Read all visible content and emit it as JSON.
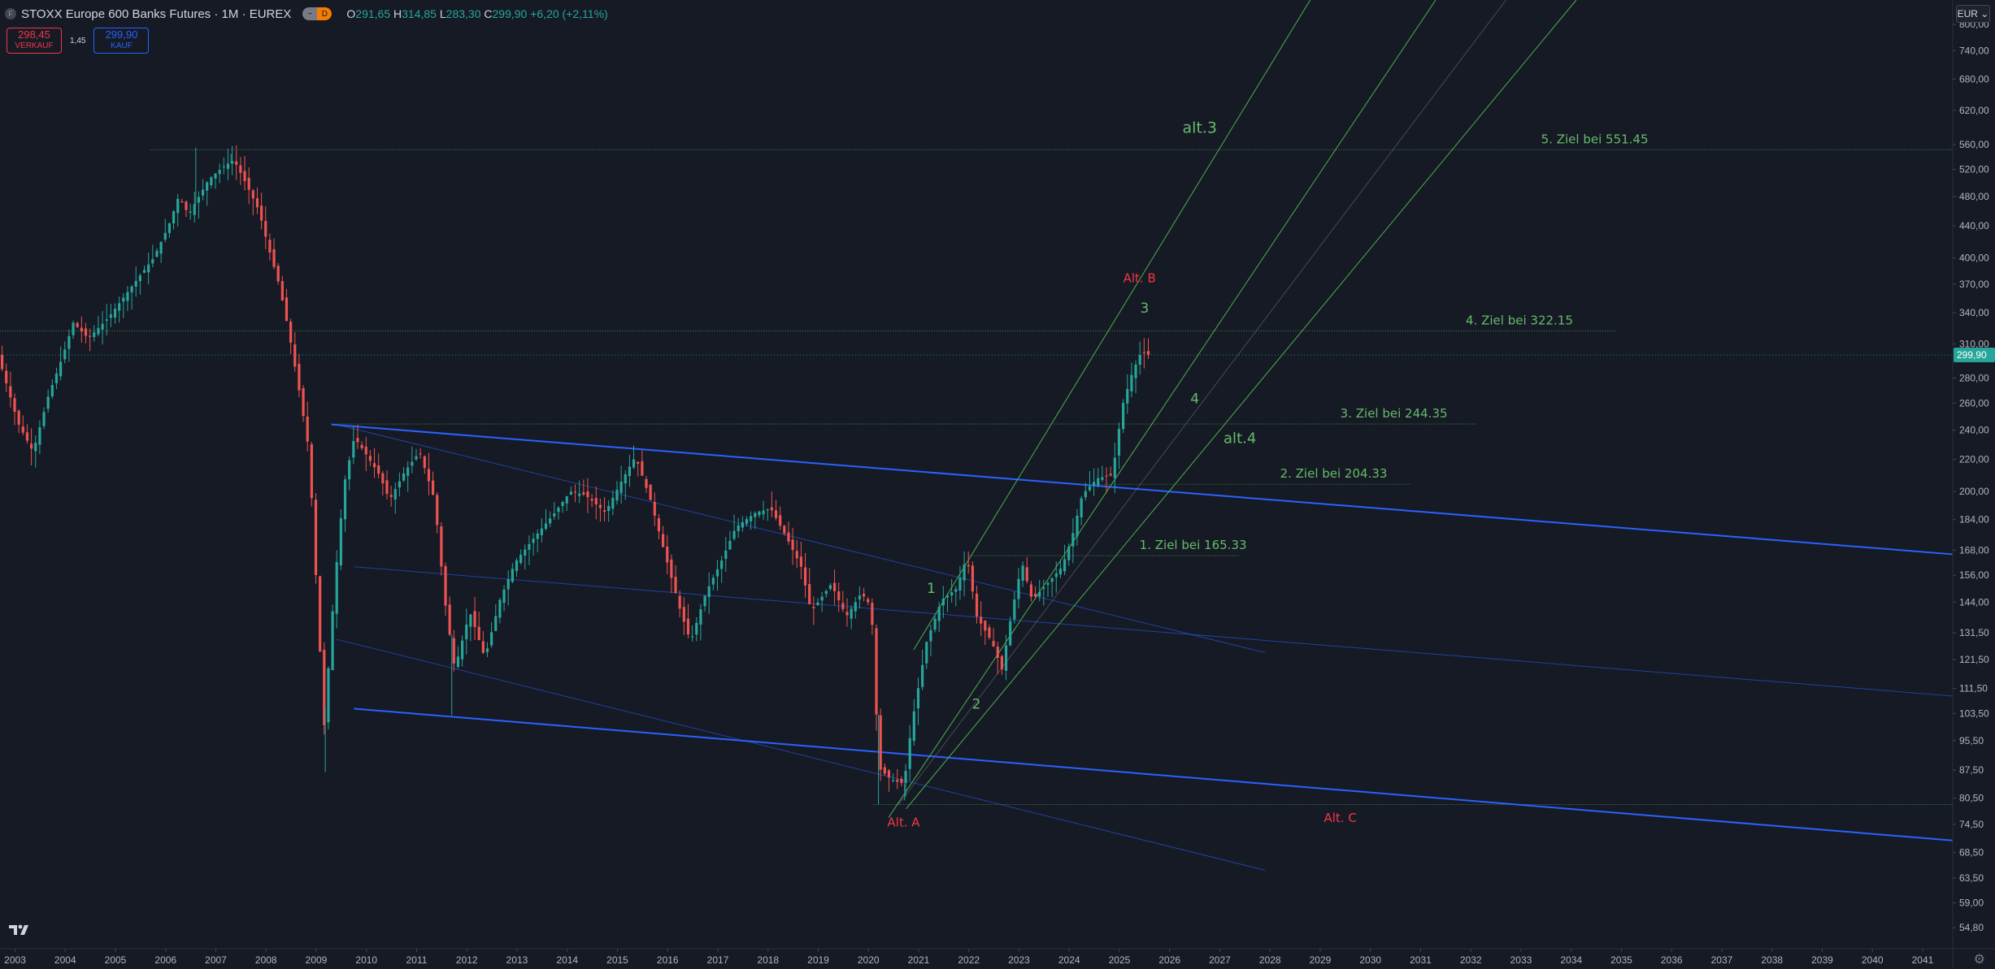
{
  "header": {
    "symbol_icon": "F",
    "title": "STOXX Europe 600 Banks Futures",
    "interval": "1M",
    "exchange": "EUREX",
    "separator": "·",
    "badge_left": "−",
    "badge_right": "D",
    "ohlc": {
      "o_label": "O",
      "o_value": "291,65",
      "h_label": "H",
      "h_value": "314,85",
      "l_label": "L",
      "l_value": "283,30",
      "c_label": "C",
      "c_value": "299,90",
      "change": "+6,20 (+2,11%)"
    }
  },
  "trade": {
    "sell_price": "298,45",
    "sell_label": "VERKAUF",
    "spread": "1,45",
    "buy_price": "299,90",
    "buy_label": "KAUF"
  },
  "currency_button": "EUR",
  "colors": {
    "background": "#161a25",
    "up": "#26a69a",
    "down": "#ef5350",
    "channel_blue": "#2962ff",
    "fib_green": "#4caf50",
    "wave_green": "#66bb6a",
    "alt_red": "#f23645"
  },
  "chart_data": {
    "type": "candlestick",
    "scale": "log",
    "x_range": [
      "2002-09",
      "2041-06"
    ],
    "y_range": [
      51.5,
      860
    ],
    "last_price": 299.9,
    "last_price_label": "299,90",
    "x_ticks": [
      "2003",
      "2004",
      "2005",
      "2006",
      "2007",
      "2008",
      "2009",
      "2010",
      "2011",
      "2012",
      "2013",
      "2014",
      "2015",
      "2016",
      "2017",
      "2018",
      "2019",
      "2020",
      "2021",
      "2022",
      "2023",
      "2024",
      "2025",
      "2026",
      "2027",
      "2028",
      "2029",
      "2030",
      "2031",
      "2032",
      "2033",
      "2034",
      "2035",
      "2036",
      "2037",
      "2038",
      "2039",
      "2040",
      "2041"
    ],
    "y_ticks": [
      {
        "v": 800,
        "label": "800,00"
      },
      {
        "v": 740,
        "label": "740,00"
      },
      {
        "v": 680,
        "label": "680,00"
      },
      {
        "v": 620,
        "label": "620,00"
      },
      {
        "v": 560,
        "label": "560,00"
      },
      {
        "v": 520,
        "label": "520,00"
      },
      {
        "v": 480,
        "label": "480,00"
      },
      {
        "v": 440,
        "label": "440,00"
      },
      {
        "v": 400,
        "label": "400,00"
      },
      {
        "v": 370,
        "label": "370,00"
      },
      {
        "v": 340,
        "label": "340,00"
      },
      {
        "v": 310,
        "label": "310,00"
      },
      {
        "v": 280,
        "label": "280,00"
      },
      {
        "v": 260,
        "label": "260,00"
      },
      {
        "v": 240,
        "label": "240,00"
      },
      {
        "v": 220,
        "label": "220,00"
      },
      {
        "v": 200,
        "label": "200,00"
      },
      {
        "v": 184,
        "label": "184,00"
      },
      {
        "v": 168,
        "label": "168,00"
      },
      {
        "v": 156,
        "label": "156,00"
      },
      {
        "v": 144,
        "label": "144,00"
      },
      {
        "v": 131.5,
        "label": "131,50"
      },
      {
        "v": 121.5,
        "label": "121,50"
      },
      {
        "v": 111.5,
        "label": "111,50"
      },
      {
        "v": 103.5,
        "label": "103,50"
      },
      {
        "v": 95.5,
        "label": "95,50"
      },
      {
        "v": 87.5,
        "label": "87,50"
      },
      {
        "v": 80.5,
        "label": "80,50"
      },
      {
        "v": 74.5,
        "label": "74,50"
      },
      {
        "v": 68.5,
        "label": "68,50"
      },
      {
        "v": 63.5,
        "label": "63,50"
      },
      {
        "v": 59,
        "label": "59,00"
      },
      {
        "v": 54.8,
        "label": "54,80"
      }
    ],
    "price_path": [
      [
        2002.7,
        300
      ],
      [
        2003.1,
        245
      ],
      [
        2003.4,
        225
      ],
      [
        2003.7,
        265
      ],
      [
        2004.0,
        300
      ],
      [
        2004.2,
        330
      ],
      [
        2004.5,
        315
      ],
      [
        2004.9,
        335
      ],
      [
        2005.4,
        370
      ],
      [
        2005.8,
        400
      ],
      [
        2006.1,
        440
      ],
      [
        2006.3,
        480
      ],
      [
        2006.5,
        455
      ],
      [
        2006.9,
        505
      ],
      [
        2007.2,
        525
      ],
      [
        2007.4,
        535
      ],
      [
        2007.6,
        505
      ],
      [
        2007.9,
        460
      ],
      [
        2008.1,
        410
      ],
      [
        2008.3,
        370
      ],
      [
        2008.5,
        320
      ],
      [
        2008.7,
        270
      ],
      [
        2008.9,
        225
      ],
      [
        2009.1,
        130
      ],
      [
        2009.2,
        100
      ],
      [
        2009.4,
        150
      ],
      [
        2009.6,
        205
      ],
      [
        2009.8,
        235
      ],
      [
        2010.0,
        225
      ],
      [
        2010.3,
        210
      ],
      [
        2010.5,
        195
      ],
      [
        2010.8,
        212
      ],
      [
        2011.1,
        225
      ],
      [
        2011.4,
        195
      ],
      [
        2011.6,
        145
      ],
      [
        2011.8,
        118
      ],
      [
        2012.1,
        140
      ],
      [
        2012.4,
        122
      ],
      [
        2012.7,
        145
      ],
      [
        2013.0,
        162
      ],
      [
        2013.4,
        175
      ],
      [
        2013.8,
        188
      ],
      [
        2014.1,
        200
      ],
      [
        2014.4,
        198
      ],
      [
        2014.8,
        188
      ],
      [
        2015.1,
        205
      ],
      [
        2015.4,
        222
      ],
      [
        2015.7,
        195
      ],
      [
        2016.0,
        165
      ],
      [
        2016.3,
        140
      ],
      [
        2016.5,
        128
      ],
      [
        2016.8,
        148
      ],
      [
        2017.1,
        162
      ],
      [
        2017.4,
        180
      ],
      [
        2017.8,
        188
      ],
      [
        2018.1,
        190
      ],
      [
        2018.4,
        175
      ],
      [
        2018.7,
        160
      ],
      [
        2018.9,
        140
      ],
      [
        2019.3,
        152
      ],
      [
        2019.6,
        138
      ],
      [
        2019.9,
        148
      ],
      [
        2020.1,
        142
      ],
      [
        2020.25,
        88
      ],
      [
        2020.5,
        85
      ],
      [
        2020.75,
        84
      ],
      [
        2020.9,
        100
      ],
      [
        2021.2,
        128
      ],
      [
        2021.5,
        145
      ],
      [
        2021.8,
        150
      ],
      [
        2022.0,
        165
      ],
      [
        2022.2,
        138
      ],
      [
        2022.5,
        128
      ],
      [
        2022.7,
        118
      ],
      [
        2022.9,
        140
      ],
      [
        2023.1,
        162
      ],
      [
        2023.3,
        145
      ],
      [
        2023.6,
        152
      ],
      [
        2023.9,
        160
      ],
      [
        2024.1,
        175
      ],
      [
        2024.3,
        198
      ],
      [
        2024.6,
        208
      ],
      [
        2024.9,
        210
      ],
      [
        2025.1,
        258
      ],
      [
        2025.3,
        285
      ],
      [
        2025.5,
        305
      ],
      [
        2025.55,
        299.9
      ]
    ],
    "lows": [
      [
        2009.18,
        87
      ],
      [
        2011.7,
        103
      ],
      [
        2020.2,
        79
      ],
      [
        2020.72,
        80
      ]
    ],
    "highs": [
      [
        2006.6,
        555
      ],
      [
        2007.3,
        545
      ]
    ],
    "trendlines": [
      {
        "kind": "thick",
        "color": "#2962ff",
        "from": [
          2009.3,
          244
        ],
        "to": [
          2041.6,
          166
        ]
      },
      {
        "kind": "thick",
        "color": "#2962ff",
        "from": [
          2009.75,
          105
        ],
        "to": [
          2041.6,
          71
        ]
      },
      {
        "kind": "thin",
        "color": "#2962ff",
        "from": [
          2009.4,
          244
        ],
        "to": [
          2027.9,
          124
        ]
      },
      {
        "kind": "thin",
        "color": "#2962ff",
        "from": [
          2009.75,
          160
        ],
        "to": [
          2041.6,
          109
        ]
      },
      {
        "kind": "thin",
        "color": "#2962ff",
        "from": [
          2009.4,
          129
        ],
        "to": [
          2027.9,
          65
        ]
      },
      {
        "kind": "green",
        "color": "#4caf50",
        "from": [
          2020.4,
          76
        ],
        "to": [
          2031.3,
          860
        ]
      },
      {
        "kind": "green",
        "color": "#4caf50",
        "from": [
          2020.75,
          78
        ],
        "to": [
          2034.1,
          860
        ]
      },
      {
        "kind": "green",
        "color": "#4caf50",
        "from": [
          2020.9,
          125
        ],
        "to": [
          2028.8,
          860
        ]
      },
      {
        "kind": "grey",
        "color": "#787b86",
        "from": [
          2020.6,
          79
        ],
        "to": [
          2032.7,
          860
        ]
      }
    ],
    "levels": [
      {
        "price": 551.45,
        "from": 2005.7,
        "to": 2041.6,
        "label": "5. Ziel bei 551.45",
        "label_x": 2033.4
      },
      {
        "price": 322.15,
        "from": 2002.7,
        "to": 2034.9,
        "label": "4. Ziel bei 322.15",
        "label_x": 2031.9
      },
      {
        "price": 244.35,
        "from": 2009.3,
        "to": 2032.1,
        "label": "3. Ziel bei 244.35",
        "label_x": 2029.4
      },
      {
        "price": 204.33,
        "from": 2024.6,
        "to": 2030.8,
        "label": "2. Ziel bei 204.33",
        "label_x": 2028.2
      },
      {
        "price": 165.33,
        "from": 2022.0,
        "to": 2027.4,
        "label": "1. Ziel bei 165.33",
        "label_x": 2025.4
      },
      {
        "price": 79.0,
        "from": 2020.1,
        "to": 2041.6,
        "label": "",
        "label_x": 0
      }
    ],
    "annotations": [
      {
        "text": "alt.3",
        "x": 2026.6,
        "y": 580,
        "color": "#66bb6a",
        "size": 19
      },
      {
        "text": "Alt. B",
        "x": 2025.4,
        "y": 372,
        "color": "#f23645",
        "size": 15
      },
      {
        "text": "3",
        "x": 2025.5,
        "y": 340,
        "color": "#66bb6a",
        "size": 17
      },
      {
        "text": "4",
        "x": 2026.5,
        "y": 260,
        "color": "#66bb6a",
        "size": 17
      },
      {
        "text": "alt.4",
        "x": 2027.4,
        "y": 231,
        "color": "#66bb6a",
        "size": 18
      },
      {
        "text": "1",
        "x": 2021.25,
        "y": 148,
        "color": "#66bb6a",
        "size": 17
      },
      {
        "text": "2",
        "x": 2022.15,
        "y": 105,
        "color": "#66bb6a",
        "size": 17
      },
      {
        "text": "Alt. A",
        "x": 2020.7,
        "y": 74,
        "color": "#f23645",
        "size": 15
      },
      {
        "text": "Alt. C",
        "x": 2029.4,
        "y": 75,
        "color": "#f23645",
        "size": 15
      }
    ]
  }
}
